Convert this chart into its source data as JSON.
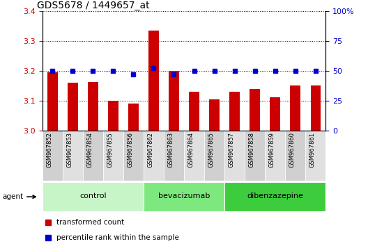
{
  "title": "GDS5678 / 1449657_at",
  "samples": [
    "GSM967852",
    "GSM967853",
    "GSM967854",
    "GSM967855",
    "GSM967856",
    "GSM967862",
    "GSM967863",
    "GSM967864",
    "GSM967865",
    "GSM967857",
    "GSM967858",
    "GSM967859",
    "GSM967860",
    "GSM967861"
  ],
  "red_values": [
    3.195,
    3.16,
    3.163,
    3.1,
    3.09,
    3.335,
    3.2,
    3.13,
    3.105,
    3.13,
    3.14,
    3.11,
    3.15,
    3.15
  ],
  "blue_values": [
    50,
    50,
    50,
    50,
    47,
    52,
    47,
    50,
    50,
    50,
    50,
    50,
    50,
    50
  ],
  "groups": [
    {
      "label": "control",
      "start": 0,
      "end": 5,
      "color": "#c8f5c8"
    },
    {
      "label": "bevacizumab",
      "start": 5,
      "end": 9,
      "color": "#7de87d"
    },
    {
      "label": "dibenzazepine",
      "start": 9,
      "end": 14,
      "color": "#3dcc3d"
    }
  ],
  "ylim_left": [
    3.0,
    3.4
  ],
  "ylim_right": [
    0,
    100
  ],
  "yticks_left": [
    3.0,
    3.1,
    3.2,
    3.3,
    3.4
  ],
  "yticks_right": [
    0,
    25,
    50,
    75,
    100
  ],
  "ytick_labels_right": [
    "0",
    "25",
    "50",
    "75",
    "100%"
  ],
  "red_color": "#cc0000",
  "blue_color": "#0000cc",
  "title_fontsize": 10,
  "tick_fontsize": 8,
  "sample_fontsize": 6,
  "agent_label": "agent",
  "legend_red": "transformed count",
  "legend_blue": "percentile rank within the sample"
}
